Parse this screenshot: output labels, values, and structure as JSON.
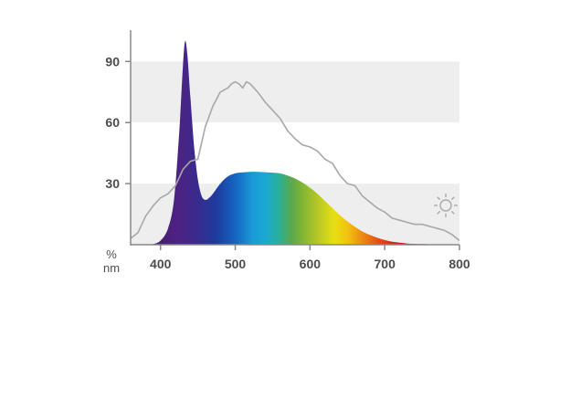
{
  "chart_data": {
    "type": "area",
    "title": "",
    "x_unit_label": "nm",
    "y_unit_label": "%",
    "xlim": [
      360,
      800
    ],
    "ylim": [
      0,
      100
    ],
    "x_ticks": [
      400,
      500,
      600,
      700,
      800
    ],
    "y_ticks": [
      30,
      60,
      90
    ],
    "grid": "horizontal bands",
    "bands": [
      [
        0,
        30
      ],
      [
        60,
        90
      ]
    ],
    "series": [
      {
        "role": "lamp emission (spectrum-filled area)",
        "x": [
          360,
          380,
          390,
          400,
          410,
          418,
          425,
          430,
          433,
          436,
          440,
          445,
          450,
          455,
          460,
          465,
          470,
          480,
          490,
          500,
          510,
          520,
          530,
          540,
          550,
          560,
          570,
          580,
          590,
          600,
          610,
          620,
          630,
          640,
          650,
          660,
          670,
          680,
          690,
          700,
          710,
          720,
          730,
          740,
          750,
          760,
          770,
          780,
          790,
          800
        ],
        "y": [
          0,
          0,
          0.3,
          2,
          8,
          22,
          55,
          88,
          100,
          93,
          72,
          48,
          32,
          24,
          22,
          23,
          25,
          30,
          33.5,
          35,
          35.5,
          35.8,
          35.8,
          35.6,
          35.4,
          35,
          34,
          32.5,
          30.5,
          28,
          25,
          21.5,
          18,
          14.5,
          11.5,
          8.8,
          6.5,
          4.8,
          3.4,
          2.3,
          1.5,
          1,
          0.6,
          0.4,
          0.3,
          0.2,
          0.1,
          0.1,
          0.1,
          0.1
        ]
      },
      {
        "role": "reference daylight curve (sun icon)",
        "x": [
          360,
          370,
          380,
          390,
          400,
          410,
          420,
          430,
          440,
          450,
          460,
          470,
          480,
          490,
          495,
          500,
          505,
          510,
          515,
          520,
          525,
          530,
          540,
          550,
          560,
          570,
          580,
          590,
          600,
          610,
          620,
          630,
          640,
          650,
          660,
          670,
          680,
          690,
          700,
          710,
          720,
          730,
          740,
          750,
          760,
          770,
          780,
          790,
          800
        ],
        "y": [
          3,
          6,
          14,
          19,
          23,
          25,
          29,
          37,
          41,
          42,
          58,
          68,
          75,
          77,
          79,
          80,
          79,
          77,
          80,
          79,
          77,
          75,
          70,
          66,
          62,
          56,
          52,
          49,
          48,
          46,
          42,
          40,
          34,
          30,
          29,
          24,
          21,
          18,
          16,
          13,
          12,
          11,
          10,
          10,
          9,
          8,
          7,
          5,
          2
        ]
      }
    ],
    "icon": "sun-icon",
    "colors": {
      "axis": "#888888",
      "band": "#eeeeee",
      "daylight_line": "#a8a8a8",
      "tick_text": "#4d4d4d"
    }
  }
}
